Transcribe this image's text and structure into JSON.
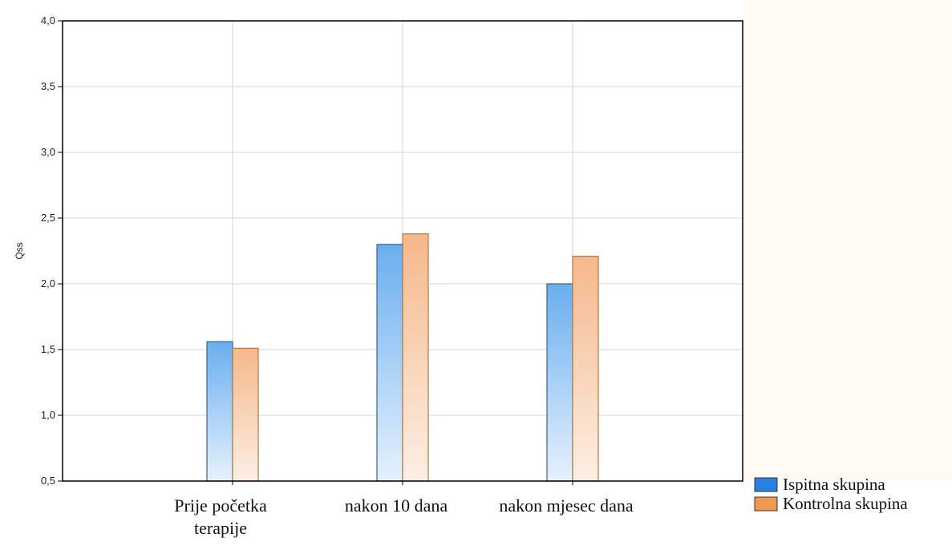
{
  "chart_data": {
    "type": "bar",
    "title": "",
    "xlabel": "",
    "ylabel": "Qss",
    "ylim": [
      0.5,
      4.0
    ],
    "yticks": [
      0.5,
      1.0,
      1.5,
      2.0,
      2.5,
      3.0,
      3.5,
      4.0
    ],
    "ytick_labels": [
      "0,5",
      "1,0",
      "1,5",
      "2,0",
      "2,5",
      "3,0",
      "3,5",
      "4,0"
    ],
    "categories": [
      {
        "lines": [
          "Prije početka",
          "terapije"
        ]
      },
      {
        "lines": [
          "nakon 10 dana"
        ]
      },
      {
        "lines": [
          "nakon mjesec dana"
        ]
      }
    ],
    "series": [
      {
        "name": "Ispitna skupina",
        "values": [
          1.56,
          2.3,
          2.0
        ],
        "color": "#6aaef0",
        "color_light": "#e6f1fc",
        "stroke": "#3f5f8a",
        "legend_color": "#2b7fe0"
      },
      {
        "name": "Kontrolna skupina",
        "values": [
          1.51,
          2.38,
          2.21
        ],
        "color": "#f5b88a",
        "color_light": "#fcefe4",
        "stroke": "#b07a42",
        "legend_color": "#f09a50"
      }
    ],
    "grid": true,
    "legend_position": "bottom-right"
  }
}
